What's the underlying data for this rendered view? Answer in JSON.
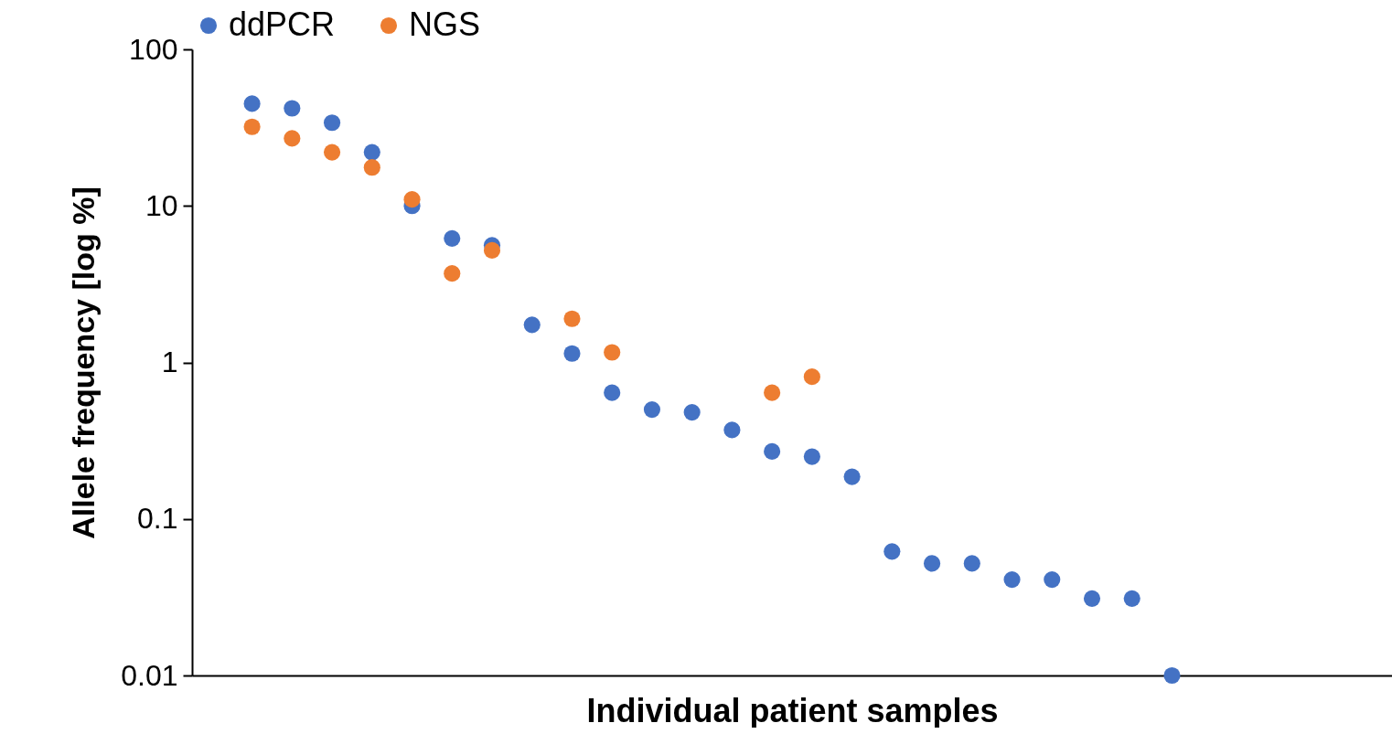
{
  "chart_data": {
    "type": "scatter",
    "xlabel": "Individual patient samples",
    "ylabel": "Allele frequency [log %]",
    "categories": [
      null,
      null,
      null,
      null,
      null,
      null,
      null,
      null,
      null,
      null,
      null,
      null,
      null,
      null,
      null,
      null,
      null,
      null,
      null,
      null,
      null,
      null,
      null,
      null,
      null,
      null,
      null,
      null,
      null,
      null
    ],
    "series": [
      {
        "name": "ddPCR",
        "color": "#4472c4",
        "values": [
          null,
          45,
          42,
          34,
          22,
          10,
          6.2,
          5.6,
          1.74,
          1.14,
          0.64,
          0.5,
          0.48,
          0.37,
          0.27,
          0.25,
          0.186,
          0.062,
          0.052,
          0.052,
          0.041,
          0.041,
          0.031,
          0.031,
          0.01,
          null,
          null,
          null,
          null,
          null
        ]
      },
      {
        "name": "NGS",
        "color": "#ed7d31",
        "values": [
          null,
          32,
          27,
          22,
          17.6,
          11,
          3.7,
          5.2,
          null,
          1.9,
          1.16,
          null,
          null,
          null,
          0.64,
          0.81,
          null,
          null,
          null,
          null,
          null,
          null,
          null,
          null,
          null,
          null,
          null,
          null,
          null,
          null
        ]
      }
    ],
    "log": true,
    "ylim": [
      0.01,
      100
    ],
    "yticks": [
      0.01,
      0.1,
      1,
      10,
      100
    ],
    "grid": false,
    "legend": "top",
    "marker": "circle",
    "tick_labels": "y"
  }
}
